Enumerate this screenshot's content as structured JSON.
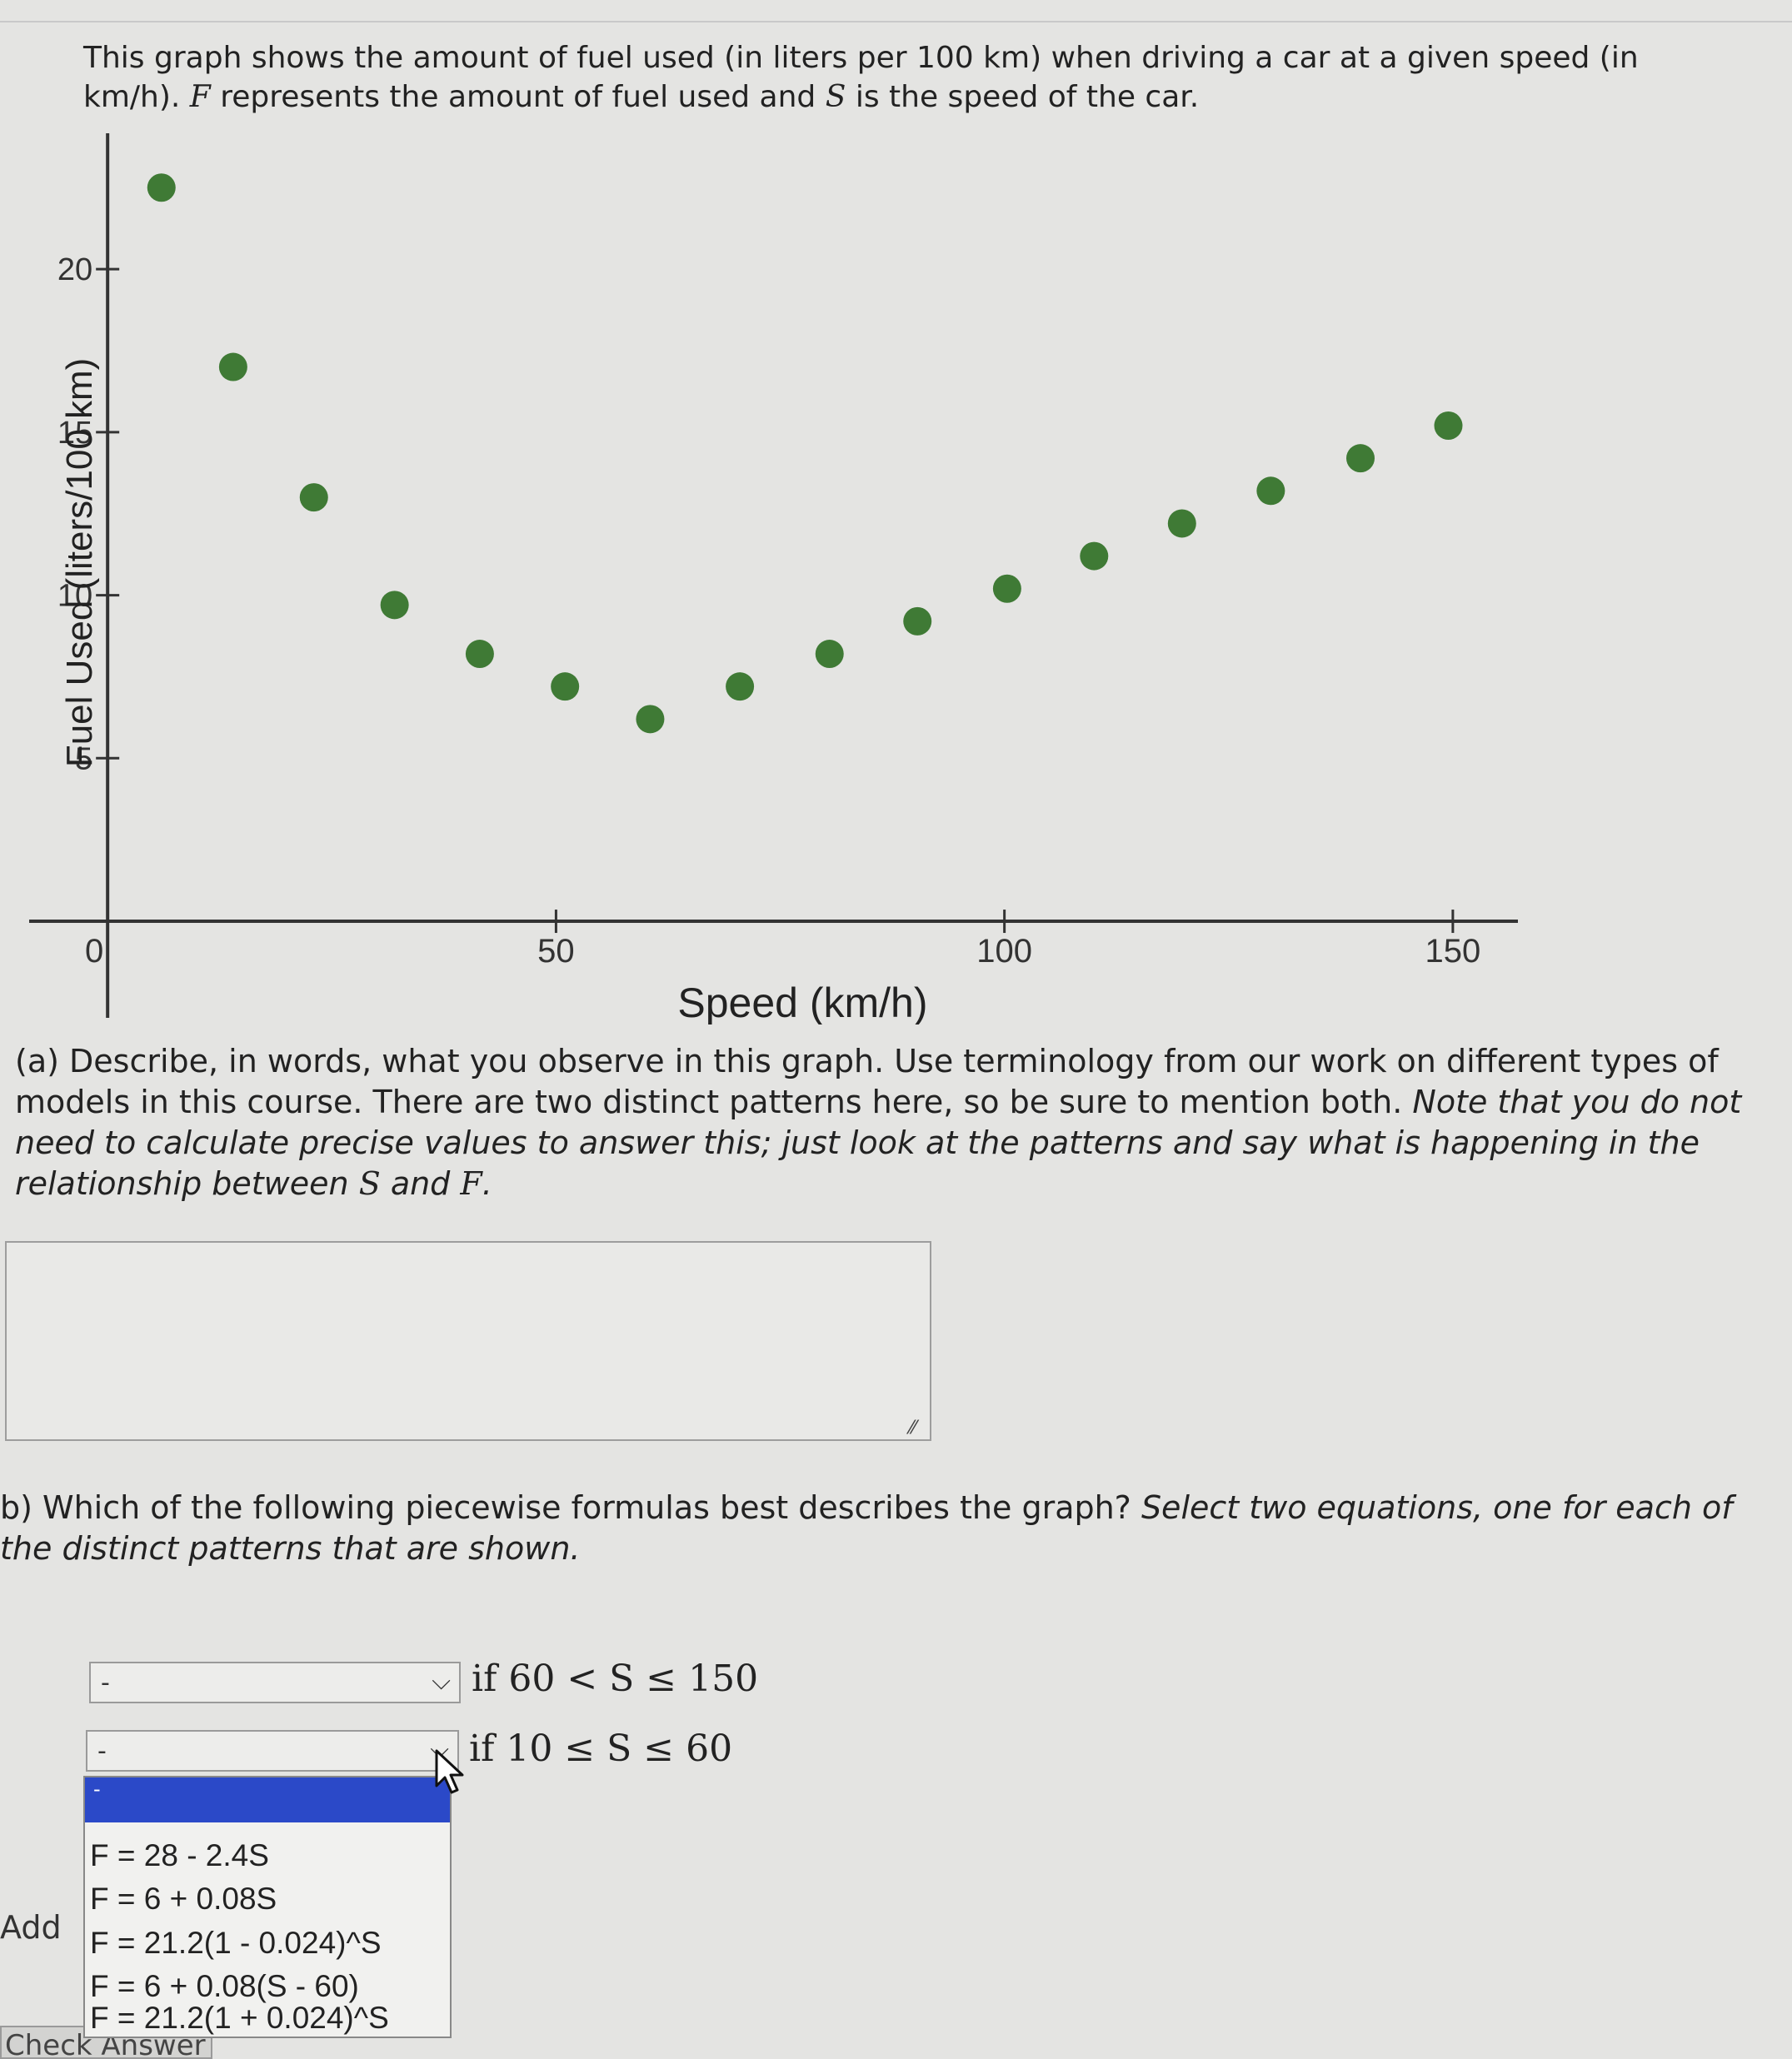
{
  "intro": {
    "p1": "This graph shows the amount of fuel used (in liters per 100 km) when driving a car at a given speed (in km/h). ",
    "var_f": "F",
    "p2": " represents the amount of fuel used and ",
    "var_s": "S",
    "p3": " is the speed of the car."
  },
  "chart_data": {
    "type": "scatter",
    "xlabel": "Speed (km/h)",
    "ylabel": "Fuel Used (liters/100 km)",
    "xlim": [
      -12,
      158
    ],
    "ylim": [
      -2.4,
      23.4
    ],
    "x_ticks": [
      0,
      50,
      100,
      150
    ],
    "y_ticks": [
      5,
      10,
      15,
      20
    ],
    "x_tick_labels": [
      "0",
      "50",
      "100",
      "150"
    ],
    "y_tick_labels": [
      "5",
      "10",
      "15",
      "20"
    ],
    "point_color": "#3f7a35",
    "points": [
      {
        "x": 6,
        "y": 22.5
      },
      {
        "x": 14,
        "y": 17
      },
      {
        "x": 23,
        "y": 13
      },
      {
        "x": 32,
        "y": 9.7
      },
      {
        "x": 41.5,
        "y": 8.2
      },
      {
        "x": 51,
        "y": 7.2
      },
      {
        "x": 60.5,
        "y": 6.2
      },
      {
        "x": 70.5,
        "y": 7.2
      },
      {
        "x": 80.5,
        "y": 8.2
      },
      {
        "x": 90.3,
        "y": 9.2
      },
      {
        "x": 100.3,
        "y": 10.2
      },
      {
        "x": 110,
        "y": 11.2
      },
      {
        "x": 119.8,
        "y": 12.2
      },
      {
        "x": 129.7,
        "y": 13.2
      },
      {
        "x": 139.7,
        "y": 14.2
      },
      {
        "x": 149.5,
        "y": 15.2
      }
    ]
  },
  "question_a": {
    "p1": "(a) Describe, in words, what you observe in this graph. Use terminology from our work on different types of models in this course. There are two distinct patterns here, so be sure to mention both. ",
    "p2": "Note that you do not need to calculate precise values to answer this; just look at the patterns and say what is happening in the relationship between ",
    "var_s": "S",
    "p3": " and ",
    "var_f": "F",
    "p4": "."
  },
  "answer_box": {
    "value": "",
    "resize_glyph": "⁄⁄"
  },
  "question_b": {
    "p1": "b) Which of the following piecewise formulas best describes the graph? ",
    "p2": "Select two equations, one for each of the distinct patterns that are shown."
  },
  "selects": [
    {
      "value": "-",
      "chevron": "⌵",
      "condition": "if 60 < S ≤ 150"
    },
    {
      "value": "-",
      "chevron": "⌵",
      "condition": "if 10 ≤ S ≤ 60"
    }
  ],
  "dropdown": {
    "highlighted": "-",
    "options": [
      "F = 28 - 2.4S",
      "F = 6 + 0.08S",
      "F = 21.2(1 - 0.024)^S",
      "F = 6 + 0.08(S - 60)",
      "F = 21.2(1 + 0.024)^S"
    ]
  },
  "footer": {
    "add_label": "Add",
    "check_label": "Check Answer"
  },
  "colors": {
    "highlight": "#2b49c8",
    "page_bg": "#e4e4e2"
  }
}
